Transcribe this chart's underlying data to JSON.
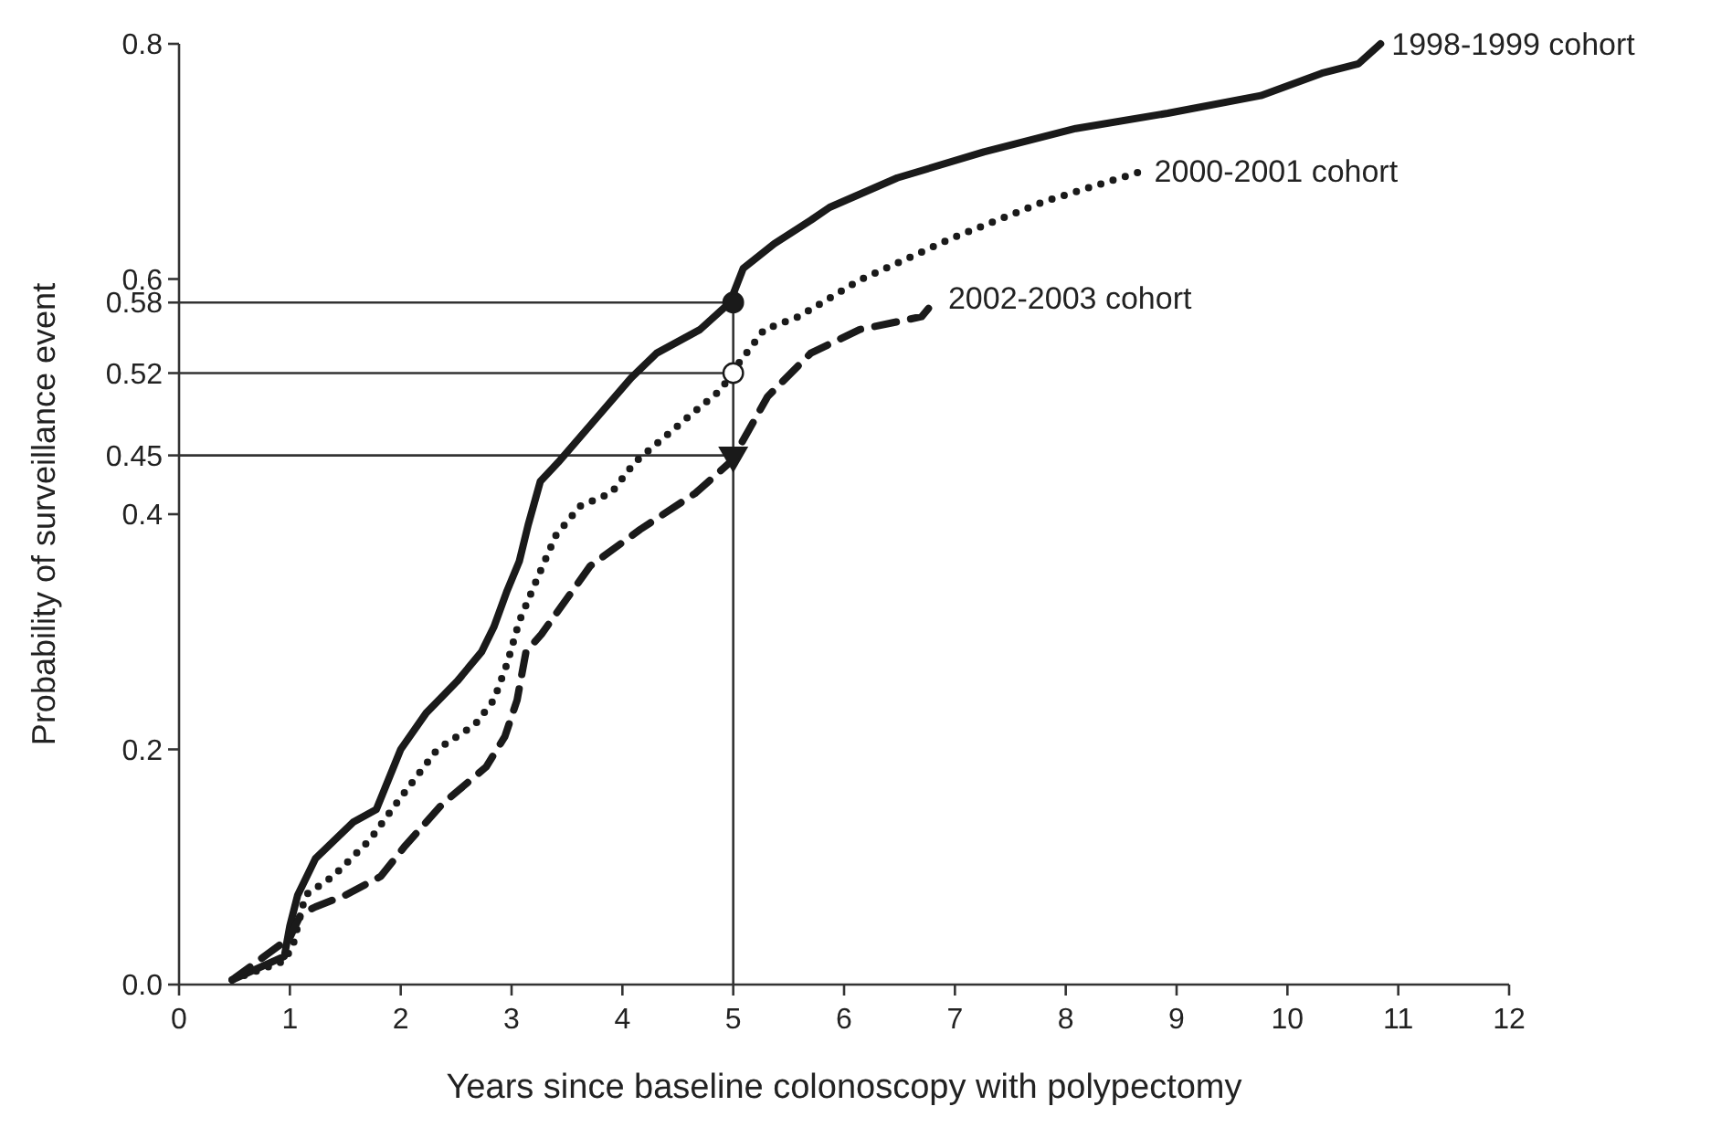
{
  "chart_data": {
    "type": "line",
    "xlabel": "Years since baseline colonoscopy with polypectomy",
    "ylabel": "Probability of surveillance event",
    "xlim": [
      0,
      12
    ],
    "xticks": [
      0,
      1,
      2,
      3,
      4,
      5,
      6,
      7,
      8,
      9,
      10,
      11,
      12
    ],
    "ylim": [
      0,
      0.8
    ],
    "yticks": [
      {
        "value": 0,
        "label": "0.0"
      },
      0.2,
      0.4,
      0.45,
      0.52,
      0.58,
      0.6,
      0.8
    ],
    "grid": false,
    "ref_lines": [
      {
        "axis": "y",
        "value": 0.58
      },
      {
        "axis": "y",
        "value": 0.52
      },
      {
        "axis": "y",
        "value": 0.45
      },
      {
        "axis": "x",
        "value": 5
      }
    ],
    "series": [
      {
        "name": "1998-1999 cohort",
        "color": "#1a1a1a",
        "line_style": "solid",
        "marker": "none",
        "x": [
          0.48,
          0.95,
          1.0,
          1.07,
          1.23,
          1.57,
          1.78,
          2.0,
          2.23,
          2.51,
          2.73,
          2.84,
          2.96,
          3.07,
          3.15,
          3.26,
          3.42,
          3.75,
          4.08,
          4.31,
          4.7,
          4.97,
          5.09,
          5.37,
          5.7,
          5.87,
          6.48,
          7.26,
          8.09,
          8.92,
          9.76,
          10.31,
          10.64,
          10.84
        ],
        "values": [
          0.004,
          0.024,
          0.05,
          0.076,
          0.107,
          0.138,
          0.149,
          0.2,
          0.231,
          0.258,
          0.283,
          0.304,
          0.335,
          0.36,
          0.391,
          0.428,
          0.444,
          0.48,
          0.516,
          0.537,
          0.557,
          0.58,
          0.609,
          0.63,
          0.65,
          0.661,
          0.686,
          0.708,
          0.728,
          0.741,
          0.756,
          0.775,
          0.783,
          0.8
        ]
      },
      {
        "name": "2000-2001 cohort",
        "color": "#1a1a1a",
        "line_style": "dotted",
        "marker": "none",
        "x": [
          0.48,
          0.95,
          1.03,
          1.14,
          1.39,
          1.72,
          2.0,
          2.33,
          2.67,
          2.84,
          2.96,
          3.07,
          3.23,
          3.4,
          3.62,
          3.9,
          4.11,
          4.56,
          4.89,
          5.03,
          5.28,
          5.59,
          6.14,
          6.98,
          7.81,
          8.7
        ],
        "values": [
          0.004,
          0.02,
          0.034,
          0.076,
          0.092,
          0.123,
          0.159,
          0.2,
          0.221,
          0.242,
          0.273,
          0.309,
          0.345,
          0.382,
          0.407,
          0.418,
          0.444,
          0.48,
          0.506,
          0.526,
          0.557,
          0.568,
          0.599,
          0.635,
          0.666,
          0.692
        ]
      },
      {
        "name": "2002-2003 cohort",
        "color": "#1a1a1a",
        "line_style": "dashed",
        "marker": "none",
        "x": [
          0.48,
          1.0,
          1.1,
          1.23,
          1.5,
          1.82,
          2.04,
          2.38,
          2.77,
          2.94,
          3.05,
          3.13,
          3.27,
          3.71,
          4.16,
          4.66,
          4.97,
          5.03,
          5.31,
          5.7,
          6.14,
          6.7,
          6.84
        ],
        "values": [
          0.004,
          0.04,
          0.06,
          0.066,
          0.076,
          0.092,
          0.118,
          0.154,
          0.185,
          0.211,
          0.242,
          0.283,
          0.298,
          0.356,
          0.387,
          0.418,
          0.444,
          0.453,
          0.5,
          0.537,
          0.557,
          0.568,
          0.584
        ]
      },
      {
        "type": "scatter",
        "color": "#1a1a1a",
        "marker": "circle",
        "x": [
          5
        ],
        "values": [
          0.58
        ]
      },
      {
        "type": "scatter",
        "color": "#ffffff",
        "marker": "circle",
        "x": [
          5
        ],
        "values": [
          0.52
        ]
      },
      {
        "type": "scatter",
        "color": "#1a1a1a",
        "marker": "triangle",
        "x": [
          5
        ],
        "values": [
          0.45
        ]
      }
    ]
  }
}
